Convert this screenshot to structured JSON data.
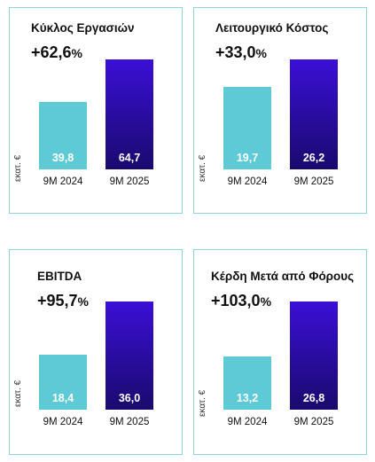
{
  "colors": {
    "bar_2024": "#5dcad6",
    "bar_2025_top": "#3a0fd6",
    "bar_2025_bottom": "#1a0a6e",
    "border": "#8fd3df"
  },
  "chart_data": [
    {
      "type": "bar",
      "title": "Κύκλος Εργασιών",
      "change": "+62,6",
      "change_unit": "%",
      "ylabel": "εκατ. €",
      "categories": [
        "9M 2024",
        "9M 2025"
      ],
      "values": [
        39.8,
        64.7
      ],
      "value_labels": [
        "39,8",
        "64,7"
      ]
    },
    {
      "type": "bar",
      "title": "Λειτουργικό Κόστος",
      "change": "+33,0",
      "change_unit": "%",
      "ylabel": "εκατ. €",
      "categories": [
        "9M 2024",
        "9M 2025"
      ],
      "values": [
        19.7,
        26.2
      ],
      "value_labels": [
        "19,7",
        "26,2"
      ]
    },
    {
      "type": "bar",
      "title": "EBITDA",
      "change": "+95,7",
      "change_unit": "%",
      "ylabel": "εκατ. €",
      "categories": [
        "9M 2024",
        "9M 2025"
      ],
      "values": [
        18.4,
        36.0
      ],
      "value_labels": [
        "18,4",
        "36,0"
      ]
    },
    {
      "type": "bar",
      "title": "Κέρδη Μετά από Φόρους",
      "change": "+103,0",
      "change_unit": "%",
      "ylabel": "εκατ. €",
      "categories": [
        "9M 2024",
        "9M 2025"
      ],
      "values": [
        13.2,
        26.8
      ],
      "value_labels": [
        "13,2",
        "26,8"
      ]
    }
  ]
}
